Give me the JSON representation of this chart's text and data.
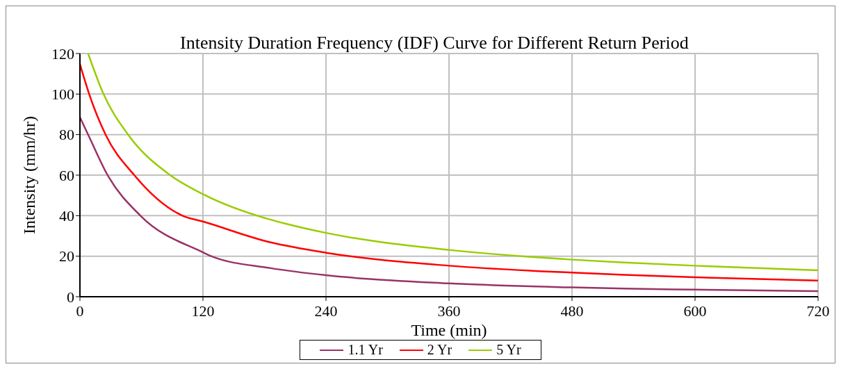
{
  "chart_data": {
    "type": "line",
    "title": "Intensity Duration Frequency (IDF) Curve for Different Return Period",
    "xlabel": "Time (min)",
    "ylabel": "Intensity (mm/hr)",
    "xlim": [
      0,
      720
    ],
    "xticks": [
      0,
      120,
      240,
      360,
      480,
      600,
      720
    ],
    "ylim": [
      0,
      120
    ],
    "yticks": [
      0,
      20,
      40,
      60,
      80,
      100,
      120
    ],
    "grid": true,
    "legend": "bottom",
    "marker": "none",
    "line_style": "solid",
    "series": [
      {
        "name": "5 Yr",
        "color": "#99cc00",
        "x": [
          8,
          23,
          47,
          88,
          120,
          186,
          201,
          240,
          360,
          480,
          531,
          600,
          720
        ],
        "values": [
          120,
          100,
          80,
          60,
          50.6,
          38,
          36,
          31.5,
          23.1,
          18.3,
          16.9,
          15.3,
          13
        ]
      },
      {
        "name": "2 Yr",
        "color": "#ff0000",
        "x": [
          0,
          9,
          25,
          53,
          100,
          120,
          186,
          240,
          360,
          480,
          531,
          600,
          720
        ],
        "values": [
          114.7,
          100,
          80,
          60,
          40,
          37.1,
          26.8,
          21.7,
          15.3,
          11.9,
          10.8,
          9.6,
          8
        ]
      },
      {
        "name": "1.1 Yr",
        "color": "#993366",
        "x": [
          0,
          8,
          27,
          59,
          120,
          128,
          186,
          240,
          360,
          480,
          531,
          600,
          720
        ],
        "values": [
          88.5,
          80,
          60,
          40,
          21.9,
          20,
          14.1,
          10.6,
          6.6,
          4.6,
          4,
          3.5,
          2.7
        ]
      }
    ]
  }
}
